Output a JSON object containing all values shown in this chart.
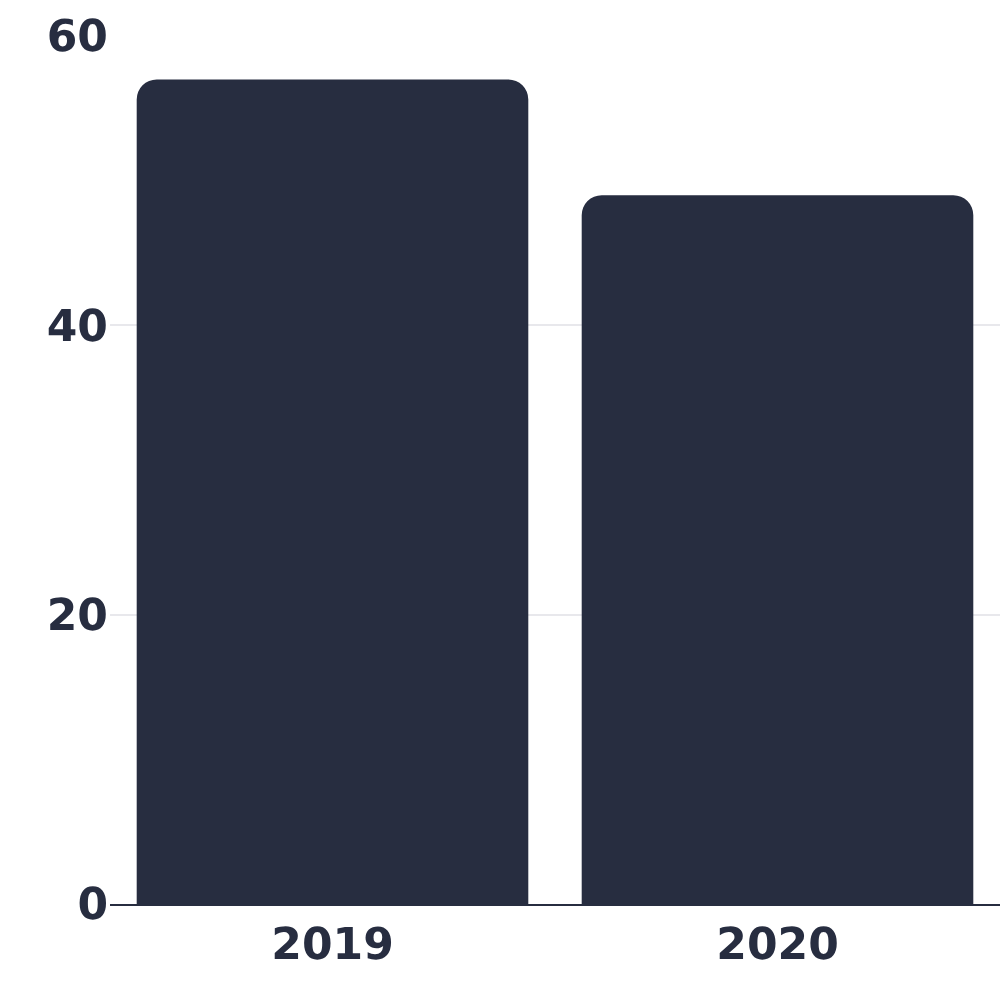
{
  "chart_data": {
    "type": "bar",
    "categories": [
      "2019",
      "2020"
    ],
    "values": [
      57,
      49
    ],
    "color": "#272d40",
    "ylim": [
      0,
      60
    ],
    "yticks": [
      0,
      20,
      40,
      60
    ],
    "grid": "y"
  }
}
